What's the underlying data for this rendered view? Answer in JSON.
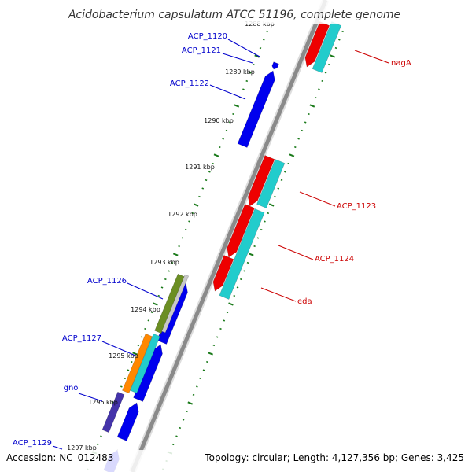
{
  "title": "Acidobacterium capsulatum ATCC 51196, complete genome",
  "footer": {
    "accession": "Accession: NC_012483",
    "topology": "Topology: circular; Length: 4,127,356 bp; Genes: 3,425"
  },
  "colors": {
    "backbone": "#8a8a8a",
    "tick": "#1a7a1a",
    "forward_label": "#0000cc",
    "reverse_label": "#cc0000",
    "cds_forward": "#0000ee",
    "cds_reverse": "#ee0000",
    "cog_cyan": "#22cccc",
    "cog_olive": "#6b8e23",
    "cog_orange": "#ff8800",
    "cog_purple": "#4433aa",
    "cog_grey": "#c8c8c8"
  },
  "kbp_labels": [
    "1288 kbp",
    "1289 kbp",
    "1290 kbp",
    "1291 kbp",
    "1292 kbp",
    "1293 kbp",
    "1294 kbp",
    "1295 kbp",
    "1296 kbp",
    "1297 kbp"
  ],
  "forward_genes": [
    "ACP_1120",
    "ACP_1121",
    "ACP_1122",
    "ACP_1126",
    "ACP_1127",
    "gno",
    "ACP_1129"
  ],
  "reverse_genes": [
    "nagA",
    "ACP_1123",
    "ACP_1124",
    "eda"
  ]
}
